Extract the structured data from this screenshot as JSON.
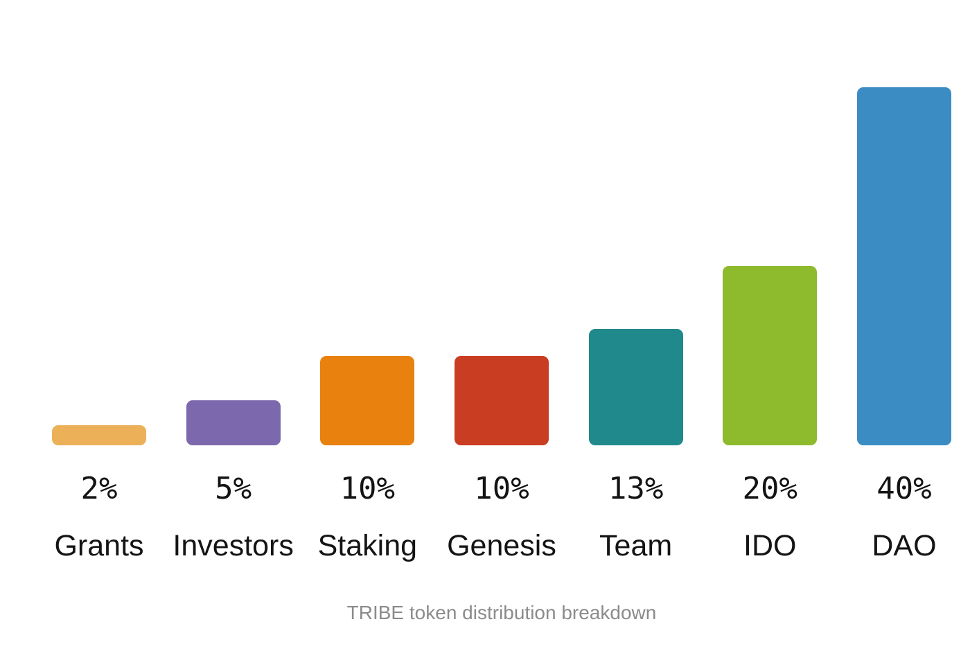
{
  "caption": "TRIBE token distribution breakdown",
  "colors": {
    "background": "#ffffff",
    "label_text": "#141414",
    "caption_text": "#8b8b8b"
  },
  "chart_data": {
    "type": "bar",
    "title": "TRIBE token distribution breakdown",
    "categories": [
      "Grants",
      "Investors",
      "Staking",
      "Genesis",
      "Team",
      "IDO",
      "DAO"
    ],
    "values": [
      2,
      5,
      10,
      10,
      13,
      20,
      40
    ],
    "value_labels": [
      "2%",
      "5%",
      "10%",
      "10%",
      "13%",
      "20%",
      "40%"
    ],
    "bar_colors": [
      "#ecb158",
      "#7c68ac",
      "#e8810e",
      "#c93d23",
      "#20898c",
      "#8eba2e",
      "#3a8cc3"
    ],
    "xlabel": "",
    "ylabel": "",
    "ylim": [
      0,
      40
    ],
    "grid": false,
    "legend": false,
    "axes_hidden": true,
    "value_label_position": "below-bar",
    "category_label_position": "below-value"
  }
}
